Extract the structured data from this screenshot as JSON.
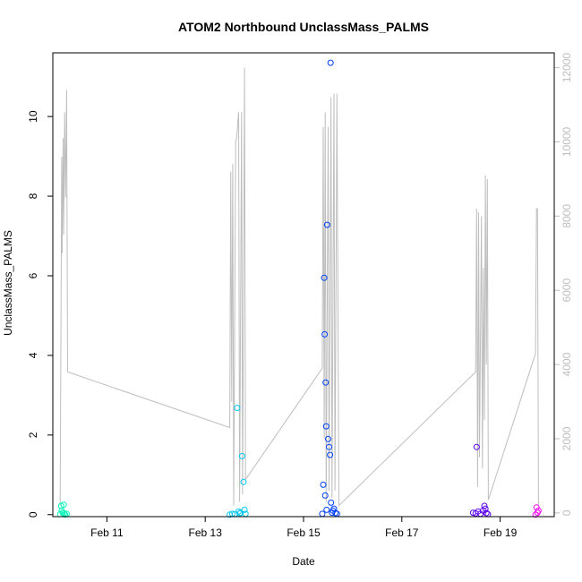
{
  "chart_data": {
    "type": "scatter",
    "title": "ATOM2 Northbound UnclassMass_PALMS",
    "xlabel": "Date",
    "ylabel": "UnclassMass_PALMS",
    "x_ticks": [
      {
        "day": 11,
        "label": "Feb 11"
      },
      {
        "day": 13,
        "label": "Feb 13"
      },
      {
        "day": 15,
        "label": "Feb 15"
      },
      {
        "day": 17,
        "label": "Feb 17"
      },
      {
        "day": 19,
        "label": "Feb 19"
      }
    ],
    "xlim_days": [
      9.9,
      20.1
    ],
    "ylim": [
      -0.05,
      11.6
    ],
    "y_ticks": [
      0,
      2,
      4,
      6,
      8,
      10
    ],
    "y2lim": [
      -100,
      12400
    ],
    "y2_ticks": [
      0,
      2000,
      4000,
      6000,
      8000,
      10000,
      12000
    ],
    "grid": false,
    "legend": "none",
    "colors": {
      "altitude_line": "#bebebe",
      "flight1": "#00f5b8",
      "flight2": "#00c8f0",
      "flight3": "#0040f8",
      "flight4": "#5a00f0",
      "flight5": "#f000f0"
    },
    "altitude": [
      [
        10.05,
        200
      ],
      [
        10.08,
        9600
      ],
      [
        10.09,
        7000
      ],
      [
        10.11,
        10100
      ],
      [
        10.12,
        7500
      ],
      [
        10.14,
        10800
      ],
      [
        10.16,
        8500
      ],
      [
        10.18,
        11400
      ],
      [
        10.2,
        3800
      ],
      [
        13.5,
        2300
      ],
      [
        13.52,
        9200
      ],
      [
        13.54,
        3000
      ],
      [
        13.56,
        9400
      ],
      [
        13.58,
        200
      ],
      [
        13.62,
        10000
      ],
      [
        13.64,
        10100
      ],
      [
        13.68,
        10800
      ],
      [
        13.7,
        300
      ],
      [
        13.74,
        10800
      ],
      [
        13.76,
        500
      ],
      [
        13.8,
        12000
      ],
      [
        13.82,
        900
      ],
      [
        15.38,
        3900
      ],
      [
        15.4,
        10400
      ],
      [
        15.42,
        2000
      ],
      [
        15.44,
        10800
      ],
      [
        15.46,
        300
      ],
      [
        15.5,
        10400
      ],
      [
        15.52,
        600
      ],
      [
        15.56,
        11200
      ],
      [
        15.58,
        400
      ],
      [
        15.62,
        11300
      ],
      [
        15.64,
        600
      ],
      [
        15.68,
        11300
      ],
      [
        15.72,
        200
      ],
      [
        18.5,
        3800
      ],
      [
        18.52,
        8200
      ],
      [
        18.54,
        700
      ],
      [
        18.56,
        8100
      ],
      [
        18.58,
        1500
      ],
      [
        18.62,
        8000
      ],
      [
        18.64,
        1200
      ],
      [
        18.66,
        6600
      ],
      [
        18.68,
        2500
      ],
      [
        18.7,
        9100
      ],
      [
        18.72,
        4000
      ],
      [
        18.74,
        9000
      ],
      [
        18.76,
        350
      ],
      [
        19.72,
        4300
      ],
      [
        19.74,
        8200
      ],
      [
        19.76,
        8200
      ],
      [
        19.78,
        200
      ]
    ],
    "series": [
      {
        "color_key": "flight1",
        "x": [
          10.05,
          10.07,
          10.08,
          10.1,
          10.12,
          10.13,
          10.15,
          10.18
        ],
        "y": [
          0.01,
          0.22,
          0.1,
          0.05,
          0.25,
          0.03,
          0.0,
          0.02
        ]
      },
      {
        "color_key": "flight2",
        "x": [
          13.5,
          13.55,
          13.6,
          13.65,
          13.68,
          13.7,
          13.72,
          13.75,
          13.78,
          13.8,
          13.82
        ],
        "y": [
          0.0,
          0.02,
          0.01,
          2.68,
          0.08,
          0.03,
          0.05,
          1.47,
          0.82,
          0.12,
          0.02
        ]
      },
      {
        "color_key": "flight3",
        "x": [
          15.38,
          15.4,
          15.42,
          15.43,
          15.44,
          15.45,
          15.46,
          15.47,
          15.48,
          15.5,
          15.52,
          15.54,
          15.55,
          15.56,
          15.58,
          15.6,
          15.62,
          15.65,
          15.68
        ],
        "y": [
          0.02,
          0.75,
          5.95,
          4.53,
          0.48,
          3.32,
          2.22,
          0.12,
          7.28,
          1.9,
          1.7,
          1.5,
          11.35,
          0.3,
          0.05,
          0.1,
          0.15,
          0.04,
          0.02
        ]
      },
      {
        "color_key": "flight4",
        "x": [
          18.45,
          18.5,
          18.52,
          18.55,
          18.6,
          18.65,
          18.68,
          18.7,
          18.72,
          18.75
        ],
        "y": [
          0.05,
          0.03,
          1.7,
          0.08,
          0.02,
          0.1,
          0.22,
          0.15,
          0.04,
          0.01
        ]
      },
      {
        "color_key": "flight5",
        "x": [
          19.72,
          19.74,
          19.76,
          19.78
        ],
        "y": [
          0.0,
          0.18,
          0.05,
          0.1
        ]
      }
    ]
  }
}
